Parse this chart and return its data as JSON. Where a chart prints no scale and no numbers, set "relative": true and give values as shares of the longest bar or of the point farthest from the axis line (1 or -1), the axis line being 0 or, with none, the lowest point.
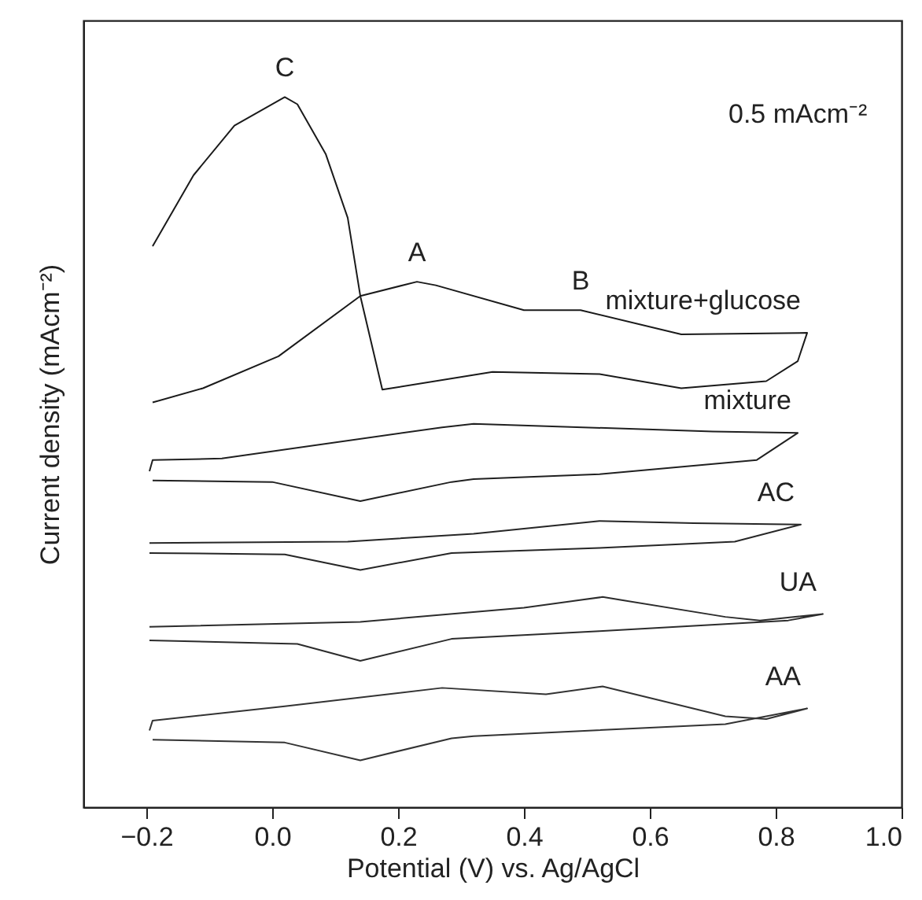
{
  "chart_data": {
    "type": "line",
    "relative": true,
    "xlabel": "Potential (V) vs. Ag/AgCl",
    "ylabel": "Current density (mAcm⁻²)",
    "xlim": [
      -0.3,
      1.0
    ],
    "xticks": [
      {
        "value": -0.2,
        "label": "−0.2"
      },
      {
        "value": 0,
        "label": "0.0"
      },
      0.2,
      0.4,
      0.6,
      0.8,
      {
        "value": 1.0,
        "label": "1.0"
      }
    ],
    "grid": false,
    "marker": "none",
    "line_style": "solid",
    "series": [
      {
        "name": "mixture+glucose",
        "color": "#1a1a1a",
        "x": [
          -0.19,
          -0.11,
          0.01,
          0.14,
          0.23,
          0.26,
          0.4,
          0.49,
          0.65,
          0.85,
          0.835,
          0.785,
          0.65,
          0.52,
          0.35,
          0.175,
          0.14,
          0.12,
          0.085,
          0.04,
          0.02,
          -0.06,
          -0.125,
          -0.19
        ],
        "values": [
          0.57,
          0.59,
          0.635,
          0.72,
          0.74,
          0.735,
          0.7,
          0.7,
          0.666,
          0.668,
          0.628,
          0.6,
          0.59,
          0.61,
          0.613,
          0.588,
          0.72,
          0.83,
          0.92,
          0.99,
          1.0,
          0.96,
          0.89,
          0.79
        ]
      },
      {
        "name": "mixture",
        "color": "#202020",
        "x": [
          -0.195,
          -0.19,
          -0.08,
          0.27,
          0.32,
          0.7,
          0.835,
          0.77,
          0.52,
          0.32,
          0.285,
          0.14,
          0.0,
          -0.19
        ],
        "values": [
          0.473,
          0.489,
          0.491,
          0.535,
          0.54,
          0.529,
          0.527,
          0.489,
          0.469,
          0.462,
          0.458,
          0.431,
          0.458,
          0.46
        ]
      },
      {
        "name": "AC",
        "color": "#262626",
        "x": [
          -0.195,
          0.12,
          0.32,
          0.52,
          0.67,
          0.84,
          0.735,
          0.52,
          0.285,
          0.14,
          0.02,
          -0.195
        ],
        "values": [
          0.372,
          0.374,
          0.385,
          0.403,
          0.4,
          0.398,
          0.374,
          0.365,
          0.358,
          0.334,
          0.356,
          0.358
        ]
      },
      {
        "name": "UA",
        "color": "#2c2c2c",
        "x": [
          -0.195,
          0.14,
          0.4,
          0.525,
          0.72,
          0.775,
          0.875,
          0.82,
          0.52,
          0.285,
          0.14,
          0.04,
          -0.195
        ],
        "values": [
          0.254,
          0.261,
          0.281,
          0.296,
          0.268,
          0.263,
          0.272,
          0.263,
          0.248,
          0.237,
          0.206,
          0.23,
          0.235
        ]
      },
      {
        "name": "AA",
        "color": "#333333",
        "x": [
          -0.195,
          -0.19,
          0.02,
          0.27,
          0.435,
          0.525,
          0.72,
          0.785,
          0.85,
          0.72,
          0.32,
          0.285,
          0.14,
          0.02,
          -0.19
        ],
        "values": [
          0.108,
          0.122,
          0.142,
          0.168,
          0.159,
          0.17,
          0.128,
          0.124,
          0.139,
          0.117,
          0.1,
          0.097,
          0.066,
          0.091,
          0.095
        ]
      }
    ],
    "annotations": [
      {
        "text": "C",
        "x": 0.02,
        "y": 1.0
      },
      {
        "text": "A",
        "x": 0.23,
        "y": 0.74
      },
      {
        "text": "B",
        "x": 0.49,
        "y": 0.7
      },
      "0.5 mAcm⁻²"
    ]
  }
}
